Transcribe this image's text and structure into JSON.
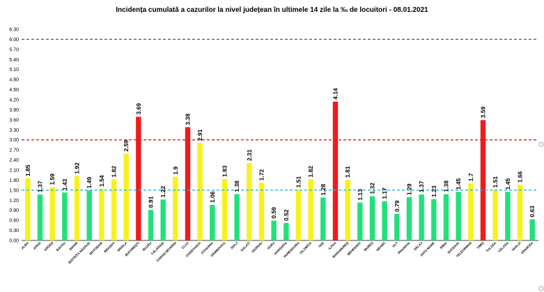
{
  "chart_data": {
    "type": "bar",
    "title": "Incidența cumulată a cazurilor la nivel județean în ultimele 14 zile la ‰ de locuitori - 08.01.2021",
    "xlabel": "",
    "ylabel": "",
    "ylim": [
      0,
      6.3
    ],
    "yticks": [
      "0.00",
      "0.30",
      "0.60",
      "0.90",
      "1.20",
      "1.50",
      "1.80",
      "2.10",
      "2.40",
      "2.70",
      "3.00",
      "3.30",
      "3.60",
      "3.90",
      "4.20",
      "4.50",
      "4.80",
      "5.10",
      "5.40",
      "5.70",
      "6.00",
      "6.30"
    ],
    "grid": false,
    "categories": [
      "ALBA",
      "ARAD",
      "ARGEȘ",
      "BACĂU",
      "BIHOR",
      "BISTRIȚA NĂSĂUD",
      "BOTOȘANI",
      "BRAȘOV",
      "BRĂILA",
      "BUCUREȘTI",
      "BUZĂU",
      "CĂLĂRAȘI",
      "CARAȘ-SEVERIN",
      "CLUJ",
      "CONSTANȚA",
      "COVASNA",
      "DÂMBOVIȚA",
      "DOLJ",
      "GALAȚI",
      "GIURGIU",
      "GORJ",
      "HARGHITA",
      "HUNEDOARA",
      "IALOMIȚA",
      "IAȘI",
      "ILFOV",
      "MARAMUREȘ",
      "MEHEDINȚI",
      "MUREȘ",
      "NEAMȚ",
      "OLT",
      "PRAHOVA",
      "SĂLAJ",
      "SATU MARE",
      "SIBIU",
      "SUCEAVA",
      "TELEORMAN",
      "TIMIȘ",
      "TULCEA",
      "VÂLCEA",
      "VASLUI",
      "VRANCEA"
    ],
    "values": [
      1.85,
      1.37,
      1.59,
      1.43,
      1.92,
      1.49,
      1.54,
      1.82,
      2.59,
      3.69,
      0.91,
      1.22,
      1.9,
      3.38,
      2.91,
      1.06,
      1.83,
      1.38,
      2.31,
      1.72,
      0.59,
      0.52,
      1.51,
      1.82,
      1.28,
      4.14,
      1.81,
      1.13,
      1.32,
      1.17,
      0.79,
      1.29,
      1.37,
      1.23,
      1.38,
      1.45,
      1.7,
      3.59,
      1.51,
      1.45,
      1.66,
      0.63
    ],
    "value_labels": [
      "1.85",
      "1.37",
      "1.59",
      "1.43",
      "1.92",
      "1.49",
      "1.54",
      "1.82",
      "2.59",
      "3.69",
      "0.91",
      "1.22",
      "1.9",
      "3.38",
      "2.91",
      "1.06",
      "1.83",
      "1.38",
      "2.31",
      "1.72",
      "0.59",
      "0.52",
      "1.51",
      "1.82",
      "1.28",
      "4.14",
      "1.81",
      "1.13",
      "1.32",
      "1.17",
      "0.79",
      "1.29",
      "1.37",
      "1.23",
      "1.38",
      "1.45",
      "1.7",
      "3.59",
      "1.51",
      "1.45",
      "1.66",
      "0.63"
    ],
    "thresholds": [
      {
        "value": 1.5,
        "color": "#2ab0e6"
      },
      {
        "value": 3.0,
        "color": "#e8141b"
      },
      {
        "value": 6.0,
        "color": "#7b3fa0"
      }
    ],
    "colors": {
      "green": "#22e07a",
      "yellow": "#f7f21c",
      "red": "#ee1c1c"
    }
  }
}
